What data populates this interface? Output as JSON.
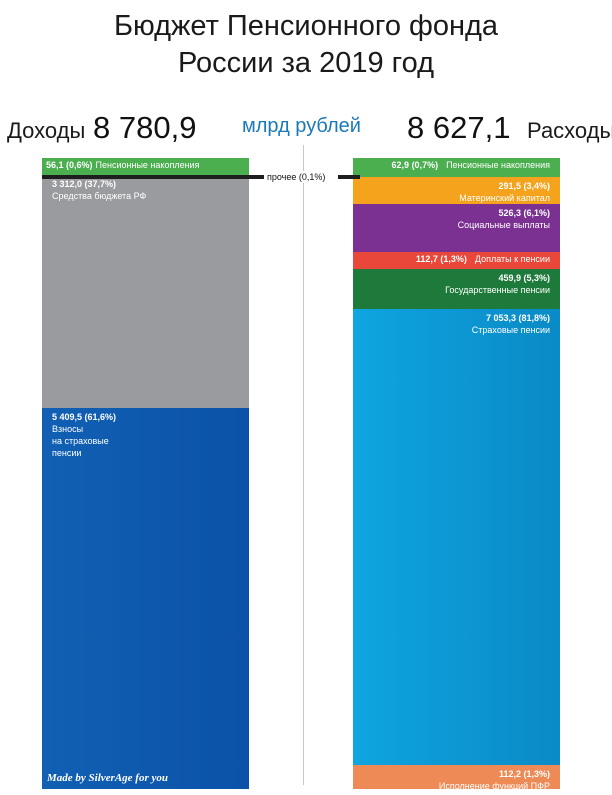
{
  "title_line1": "Бюджет Пенсионного фонда",
  "title_line2": "России за 2019 год",
  "income_label": "Доходы",
  "income_total": "8 780,9",
  "unit": "млрд рублей",
  "expense_total": "8 627,1",
  "expense_label": "Расходы",
  "other_label": "прочее (0,1%)",
  "credit": "Made by SilverAge for you",
  "colors": {
    "green": "#4bae4f",
    "gray": "#9a9b9e",
    "blue_dark": "#1160b3",
    "orange": "#f5a21c",
    "purple": "#7b3192",
    "red": "#e8473a",
    "dark_green": "#1d7a3a",
    "light_blue": "#0ea5e0",
    "salmon": "#ee8a56",
    "accent_blue": "#1a7ab9"
  },
  "chart_data": {
    "type": "bar",
    "unit": "млрд рублей",
    "income": {
      "label": "Доходы",
      "total": 8780.9,
      "segments": [
        {
          "value": 56.1,
          "label": "56,1 (0,6%)",
          "name": "Пенсионные накопления",
          "share": 0.6
        },
        {
          "value": 3312.0,
          "label": "3 312,0 (37,7%)",
          "name": "Средства бюджета РФ",
          "share": 37.7
        },
        {
          "value": 5409.5,
          "label": "5 409,5 (61,6%)",
          "name": "Взносы\nна страховые\nпенсии",
          "share": 61.6
        }
      ],
      "other_share": 0.1
    },
    "expenses": {
      "label": "Расходы",
      "total": 8627.1,
      "segments": [
        {
          "value": 62.9,
          "label": "62,9 (0,7%)",
          "name": "Пенсионные накопления",
          "share": 0.7
        },
        {
          "value": 291.5,
          "label": "291,5 (3,4%)",
          "name": "Материнский капитал",
          "share": 3.4
        },
        {
          "value": 526.3,
          "label": "526,3 (6,1%)",
          "name": "Социальные выплаты",
          "share": 6.1
        },
        {
          "value": 112.7,
          "label": "112,7 (1,3%)",
          "name": "Доплаты к пенсии",
          "share": 1.3
        },
        {
          "value": 459.9,
          "label": "459,9 (5,3%)",
          "name": "Государственные пенсии",
          "share": 5.3
        },
        {
          "value": 7053.3,
          "label": "7 053,3 (81,8%)",
          "name": "Страховые пенсии",
          "share": 81.8
        },
        {
          "value": 112.2,
          "label": "112,2 (1,3%)",
          "name": "Исполнение функций ПФР",
          "share": 1.3
        }
      ]
    }
  }
}
